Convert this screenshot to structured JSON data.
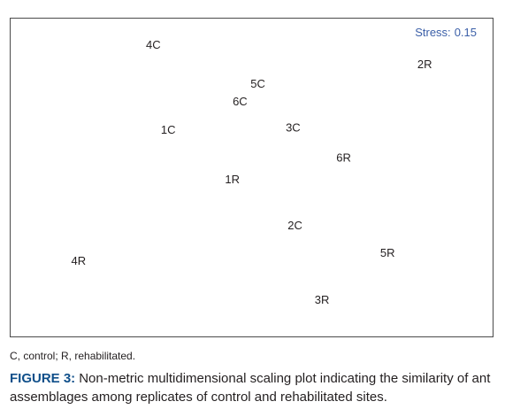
{
  "chart_data": {
    "type": "scatter",
    "title": "",
    "xlabel": "",
    "ylabel": "",
    "xlim": [
      0,
      100
    ],
    "ylim": [
      0,
      100
    ],
    "grid": false,
    "axes_ticks": false,
    "annotation": {
      "label": "Stress:",
      "value": "0.15",
      "color": "#3b5fa8"
    },
    "label_color": "#231f20",
    "points": [
      {
        "label": "4C",
        "x": 29.6,
        "y": 91.5
      },
      {
        "label": "2R",
        "x": 85.9,
        "y": 85.3
      },
      {
        "label": "5C",
        "x": 51.3,
        "y": 79.2
      },
      {
        "label": "6C",
        "x": 47.6,
        "y": 73.6
      },
      {
        "label": "1C",
        "x": 32.7,
        "y": 64.8
      },
      {
        "label": "3C",
        "x": 58.6,
        "y": 65.4
      },
      {
        "label": "6R",
        "x": 69.1,
        "y": 55.9
      },
      {
        "label": "1R",
        "x": 46.0,
        "y": 49.2
      },
      {
        "label": "2C",
        "x": 59.0,
        "y": 34.6
      },
      {
        "label": "5R",
        "x": 78.2,
        "y": 26.0
      },
      {
        "label": "4R",
        "x": 14.1,
        "y": 23.5
      },
      {
        "label": "3R",
        "x": 64.6,
        "y": 11.2
      }
    ]
  },
  "footnote": "C, control; R, rehabilitated.",
  "caption": {
    "label": "FIGURE 3:",
    "text": "Non-metric multidimensional scaling plot indicating the similarity of ant assemblages among replicates of control and rehabilitated sites.",
    "label_color": "#0f4f8a"
  }
}
